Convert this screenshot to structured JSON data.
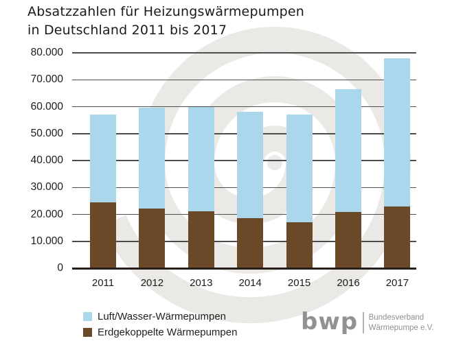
{
  "title": {
    "line1": "Absatzzahlen für Heizungswärmepumpen",
    "line2": "in Deutschland 2011 bis 2017"
  },
  "chart_data": {
    "type": "bar",
    "stacked": true,
    "title": "Absatzzahlen für Heizungswärmepumpen in Deutschland 2011 bis 2017",
    "categories": [
      "2011",
      "2012",
      "2013",
      "2014",
      "2015",
      "2016",
      "2017"
    ],
    "series": [
      {
        "key": "luft-wasser",
        "name": "Luft/Wasser-Wärmepumpen",
        "color": "#abd7ec",
        "values": [
          32500,
          37300,
          38800,
          39500,
          39900,
          45600,
          55000
        ]
      },
      {
        "key": "erdgekoppelt",
        "name": "Erdgekoppelte Wärmepumpen",
        "color": "#6b4827",
        "values": [
          24500,
          22200,
          21200,
          18500,
          17100,
          20900,
          23000
        ]
      }
    ],
    "stack_bottom": "Erdgekoppelte Wärmepumpen",
    "totals": [
      57000,
      59500,
      60000,
      58000,
      57000,
      66500,
      78000
    ],
    "xlabel": "",
    "ylabel": "",
    "ylim": [
      0,
      80000
    ],
    "ytick_step": 10000,
    "ytick_labels": [
      "0",
      "10.000",
      "20.000",
      "30.000",
      "40.000",
      "50.000",
      "60.000",
      "70.000",
      "80.000"
    ],
    "grid": true,
    "legend_position": "bottom-left"
  },
  "logo": {
    "abbr": "bwp",
    "org_line1": "Bundesverband",
    "org_line2": "Wärmepumpe e.V."
  },
  "colors": {
    "air_water_blue": "#abd7ec",
    "ground_brown": "#6b4827",
    "grid_line": "#4d4d4d",
    "axis_line": "#261e16",
    "watermark_gray": "#ebe9e6",
    "logo_gray": "#929292",
    "text": "#1b1b1b"
  }
}
